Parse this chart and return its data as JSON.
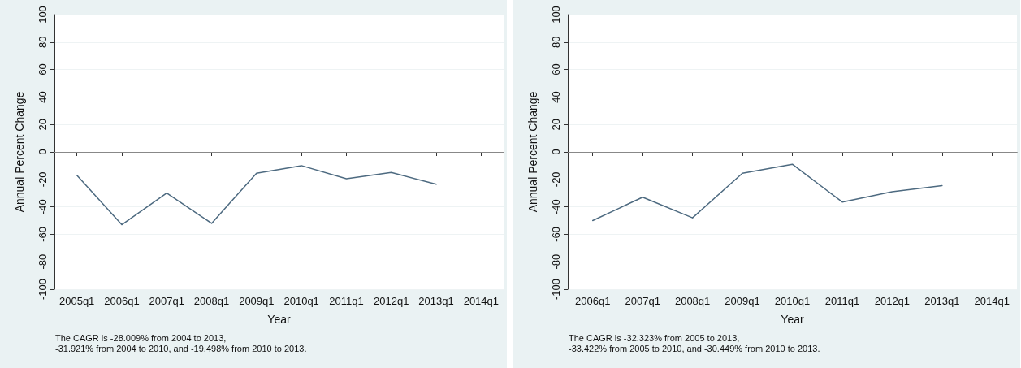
{
  "chart_data": [
    {
      "type": "line",
      "xlabel": "Year",
      "ylabel": "Annual Percent Change",
      "categories": [
        "2005q1",
        "2006q1",
        "2007q1",
        "2008q1",
        "2009q1",
        "2010q1",
        "2011q1",
        "2012q1",
        "2013q1",
        "2014q1"
      ],
      "series": [
        {
          "color": "#4d6a80",
          "values": [
            -17,
            -53,
            -30,
            -52,
            -15.5,
            -10,
            -19.5,
            -15,
            -23.5,
            null
          ]
        }
      ],
      "ylim": [
        -100,
        100
      ],
      "yticks": [
        -100,
        -80,
        -60,
        -40,
        -20,
        0,
        20,
        40,
        60,
        80,
        100
      ],
      "grid": "y",
      "marker": "none",
      "line_style": "solid",
      "ref_lines": [
        {
          "axis": "y",
          "value": 0,
          "color": "#888888"
        }
      ],
      "annotations": [
        "The CAGR is -28.009% from 2004 to 2013,\n-31.921% from 2004 to 2010, and -19.498% from 2010 to 2013."
      ]
    },
    {
      "type": "line",
      "xlabel": "Year",
      "ylabel": "Annual Percent Change",
      "categories": [
        "2006q1",
        "2007q1",
        "2008q1",
        "2009q1",
        "2010q1",
        "2011q1",
        "2012q1",
        "2013q1",
        "2014q1"
      ],
      "series": [
        {
          "color": "#4d6a80",
          "values": [
            -50,
            -33,
            -48,
            -15.5,
            -9,
            -36.5,
            -29,
            -24.5,
            null
          ]
        }
      ],
      "ylim": [
        -100,
        100
      ],
      "yticks": [
        -100,
        -80,
        -60,
        -40,
        -20,
        0,
        20,
        40,
        60,
        80,
        100
      ],
      "grid": "y",
      "marker": "none",
      "line_style": "solid",
      "ref_lines": [
        {
          "axis": "y",
          "value": 0,
          "color": "#888888"
        }
      ],
      "annotations": [
        "The CAGR is -32.323% from 2005 to 2013,\n-33.422% from 2005 to 2010, and -30.449% from 2010 to 2013."
      ]
    }
  ]
}
